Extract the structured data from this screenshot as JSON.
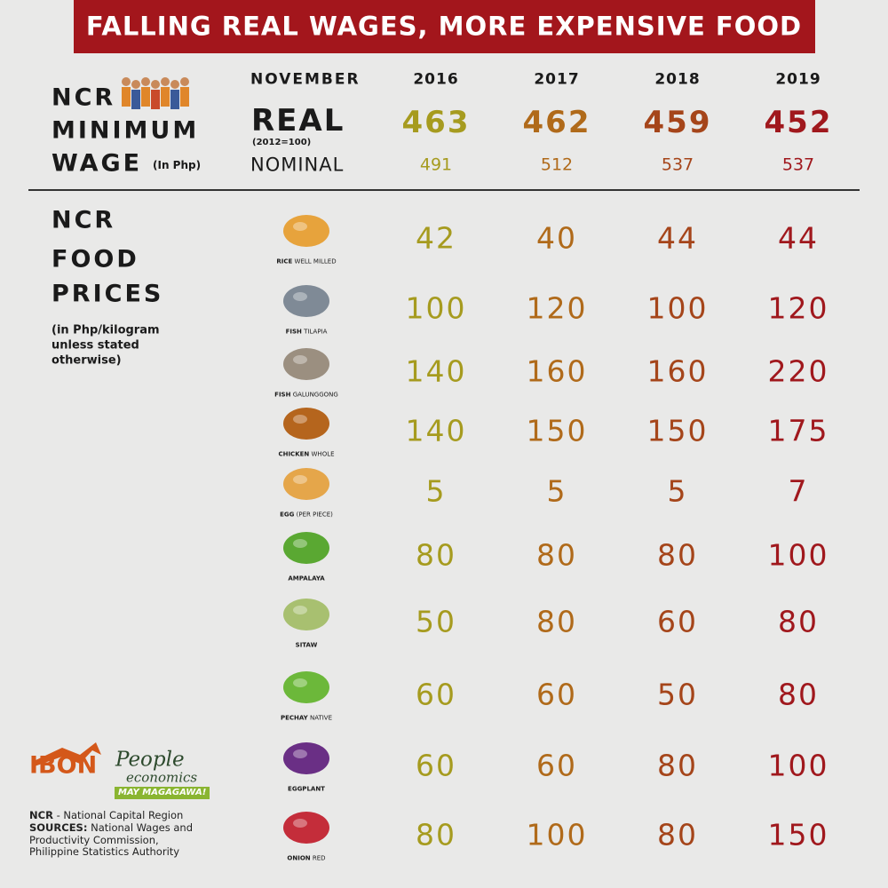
{
  "header": {
    "title": "FALLING REAL WAGES, MORE EXPENSIVE FOOD"
  },
  "wage": {
    "label": [
      "NCR",
      "MINIMUM",
      "WAGE"
    ],
    "unit": "(In Php)",
    "period": "NOVEMBER",
    "years": [
      "2016",
      "2017",
      "2018",
      "2019"
    ],
    "real_label": "REAL",
    "real_base": "(2012=100)",
    "real": [
      463,
      462,
      459,
      452
    ],
    "nominal_label": "NOMINAL",
    "nominal": [
      491,
      512,
      537,
      537
    ]
  },
  "food": {
    "label": [
      "NCR",
      "FOOD",
      "PRICES"
    ],
    "note": "(in Php/kilogram unless stated otherwise)",
    "items": [
      {
        "name": "RICE",
        "detail": "WELL MILLED",
        "prices": [
          42,
          40,
          44,
          44
        ]
      },
      {
        "name": "FISH",
        "detail": "TILAPIA",
        "prices": [
          100,
          120,
          100,
          120
        ]
      },
      {
        "name": "FISH",
        "detail": "GALUNGGONG",
        "prices": [
          140,
          160,
          160,
          220
        ]
      },
      {
        "name": "CHICKEN",
        "detail": "WHOLE",
        "prices": [
          140,
          150,
          150,
          175
        ]
      },
      {
        "name": "EGG",
        "detail": "(PER PIECE)",
        "prices": [
          5,
          5,
          5,
          7
        ]
      },
      {
        "name": "AMPALAYA",
        "detail": null,
        "prices": [
          80,
          80,
          80,
          100
        ]
      },
      {
        "name": "SITAW",
        "detail": null,
        "prices": [
          50,
          80,
          60,
          80
        ]
      },
      {
        "name": "PECHAY",
        "detail": "NATIVE",
        "prices": [
          60,
          60,
          50,
          80
        ]
      },
      {
        "name": "EGGPLANT",
        "detail": null,
        "prices": [
          60,
          60,
          80,
          100
        ]
      },
      {
        "name": "ONION",
        "detail": "RED",
        "prices": [
          80,
          100,
          80,
          150
        ]
      }
    ]
  },
  "logo": {
    "org": "IBON",
    "brand": [
      "People",
      "economics"
    ],
    "tagline": "MAY MAGAGAWA!"
  },
  "footer": {
    "abbrev": "NCR",
    "abbrev_text": "- National Capital Region",
    "sources_label": "SOURCES:",
    "sources": "National Wages and Productivity Commission, Philippine Statistics Authority"
  }
}
